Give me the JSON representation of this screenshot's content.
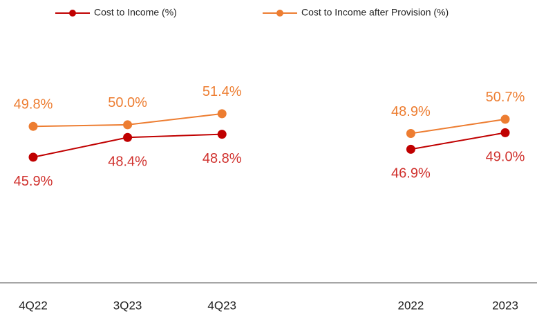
{
  "chart_data": {
    "type": "line",
    "categories": [
      "4Q22",
      "3Q23",
      "4Q23",
      null,
      "2022",
      "2023"
    ],
    "series": [
      {
        "name": "Cost to Income (%)",
        "color": "#c00000",
        "label_color": "#d0312d",
        "values": [
          45.9,
          48.4,
          48.8,
          null,
          46.9,
          49.0
        ],
        "value_labels": [
          "45.9%",
          "48.4%",
          "48.8%",
          null,
          "46.9%",
          "49.0%"
        ]
      },
      {
        "name": "Cost to Income after Provision (%)",
        "color": "#ed7d31",
        "label_color": "#ed7d31",
        "values": [
          49.8,
          50.0,
          51.4,
          null,
          48.9,
          50.7
        ],
        "value_labels": [
          "49.8%",
          "50.0%",
          "51.4%",
          null,
          "48.9%",
          "50.7%"
        ]
      }
    ],
    "ylim": [
      30,
      63
    ]
  }
}
